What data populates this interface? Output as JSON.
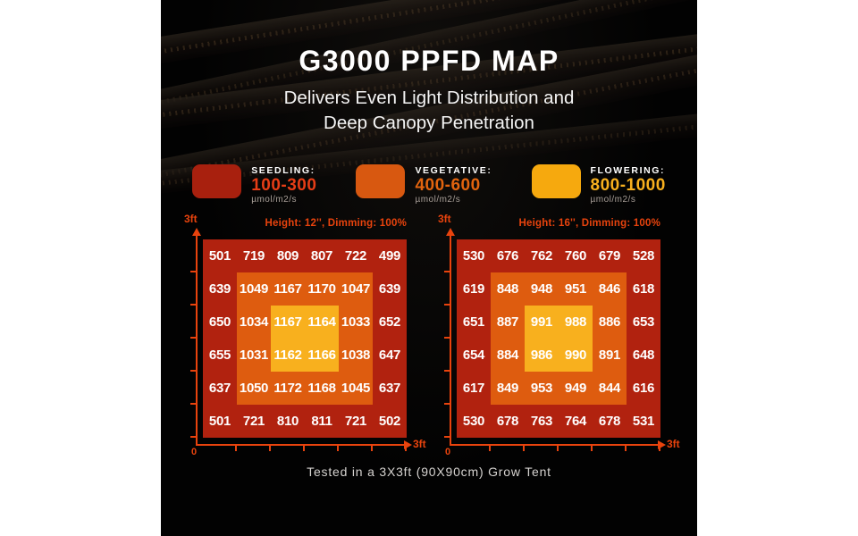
{
  "header": {
    "title": "G3000 PPFD MAP",
    "subtitle_line1": "Delivers Even Light Distribution and",
    "subtitle_line2": "Deep Canopy Penetration"
  },
  "legend": {
    "items": [
      {
        "label": "SEEDLING:",
        "range": "100-300",
        "unit": "µmol/m2/s",
        "swatch_color": "#a8200e",
        "range_color": "#e63d16"
      },
      {
        "label": "VEGETATIVE:",
        "range": "400-600",
        "unit": "µmol/m2/s",
        "swatch_color": "#d85810",
        "range_color": "#e2640e"
      },
      {
        "label": "FLOWERING:",
        "range": "800-1000",
        "unit": "µmol/m2/s",
        "swatch_color": "#f6a90e",
        "range_color": "#f8b01e"
      }
    ]
  },
  "chart_data": [
    {
      "type": "heatmap",
      "title": "Height: 12'', Dimming: 100%",
      "y_axis_top_label": "3ft",
      "x_axis_origin_label": "0",
      "x_axis_end_label": "3ft",
      "rows": [
        [
          501,
          719,
          809,
          807,
          722,
          499
        ],
        [
          639,
          1049,
          1167,
          1170,
          1047,
          639
        ],
        [
          650,
          1034,
          1167,
          1164,
          1033,
          652
        ],
        [
          655,
          1031,
          1162,
          1166,
          1038,
          647
        ],
        [
          637,
          1050,
          1172,
          1168,
          1045,
          637
        ],
        [
          501,
          721,
          810,
          811,
          721,
          502
        ]
      ],
      "zone_colors": {
        "outer": "#b1220f",
        "mid": "#de5c0f",
        "center": "#f8b01e"
      },
      "axis_color": "#e8430d"
    },
    {
      "type": "heatmap",
      "title": "Height: 16'', Dimming: 100%",
      "y_axis_top_label": "3ft",
      "x_axis_origin_label": "0",
      "x_axis_end_label": "3ft",
      "rows": [
        [
          530,
          676,
          762,
          760,
          679,
          528
        ],
        [
          619,
          848,
          948,
          951,
          846,
          618
        ],
        [
          651,
          887,
          991,
          988,
          886,
          653
        ],
        [
          654,
          884,
          986,
          990,
          891,
          648
        ],
        [
          617,
          849,
          953,
          949,
          844,
          616
        ],
        [
          530,
          678,
          763,
          764,
          678,
          531
        ]
      ],
      "zone_colors": {
        "outer": "#b1220f",
        "mid": "#de5c0f",
        "center": "#f8b01e"
      },
      "axis_color": "#e8430d"
    }
  ],
  "footer": {
    "caption": "Tested in a 3X3ft (90X90cm) Grow Tent"
  }
}
